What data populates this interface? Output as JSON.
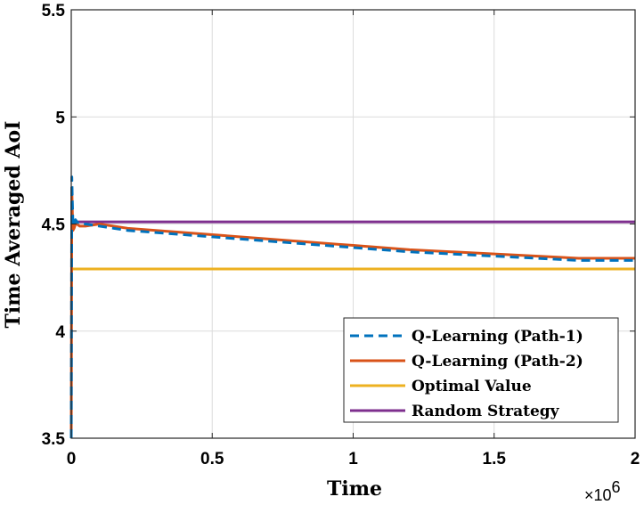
{
  "chart_data": {
    "type": "line",
    "xlabel": "Time",
    "ylabel": "Time Averaged AoI",
    "x_exponent_label": "×10",
    "x_exponent_power": "6",
    "xlim": [
      0,
      2
    ],
    "ylim": [
      3.5,
      5.5
    ],
    "xticks": [
      0,
      0.5,
      1,
      1.5,
      2
    ],
    "xtick_labels": [
      "0",
      "0.5",
      "1",
      "1.5",
      "2"
    ],
    "yticks": [
      3.5,
      4,
      4.5,
      5,
      5.5
    ],
    "ytick_labels": [
      "3.5",
      "4",
      "4.5",
      "5",
      "5.5"
    ],
    "grid": true,
    "legend_position": "bottom-right",
    "series": [
      {
        "name": "Q-Learning (Path-1)",
        "color": "#0072BD",
        "style": "dashed",
        "x": [
          0,
          0.002,
          0.004,
          0.006,
          0.01,
          0.015,
          0.02,
          0.03,
          0.05,
          0.1,
          0.2,
          0.3,
          0.5,
          0.7,
          1.0,
          1.2,
          1.5,
          1.8,
          2.0
        ],
        "y": [
          3.5,
          4.72,
          4.6,
          4.5,
          4.49,
          4.52,
          4.51,
          4.5,
          4.5,
          4.49,
          4.47,
          4.46,
          4.44,
          4.42,
          4.39,
          4.37,
          4.35,
          4.33,
          4.33
        ]
      },
      {
        "name": "Q-Learning (Path-2)",
        "color": "#D95319",
        "style": "solid",
        "x": [
          0,
          0.002,
          0.004,
          0.006,
          0.01,
          0.015,
          0.02,
          0.03,
          0.05,
          0.1,
          0.2,
          0.3,
          0.5,
          0.7,
          1.0,
          1.2,
          1.5,
          1.8,
          2.0
        ],
        "y": [
          3.5,
          4.67,
          4.55,
          4.47,
          4.48,
          4.5,
          4.5,
          4.49,
          4.49,
          4.5,
          4.48,
          4.47,
          4.45,
          4.43,
          4.4,
          4.38,
          4.36,
          4.34,
          4.34
        ]
      },
      {
        "name": "Optimal Value",
        "color": "#EDB120",
        "style": "solid",
        "x": [
          0,
          2
        ],
        "y": [
          4.29,
          4.29
        ]
      },
      {
        "name": "Random Strategy",
        "color": "#7E2F8E",
        "style": "solid",
        "x": [
          0,
          2
        ],
        "y": [
          4.51,
          4.51
        ]
      }
    ]
  }
}
